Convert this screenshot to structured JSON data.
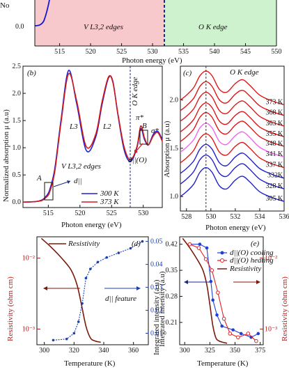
{
  "chart_data": [
    {
      "id": "top",
      "type": "area",
      "xlabel": "Photon energy (eV)",
      "ylabel_fragment": "No",
      "x_ticks": [
        515,
        520,
        525,
        530,
        535,
        540,
        545,
        550
      ],
      "y_ticks": [
        "0.0"
      ],
      "xlim": [
        511,
        550
      ],
      "regions": [
        {
          "label": "V L3,2 edges",
          "from": 511,
          "to": 528,
          "color": "#f7c9cc"
        },
        {
          "label": "O K edge",
          "from": 528,
          "to": 550,
          "color": "#cdf2cd"
        }
      ],
      "divider_x": 528
    },
    {
      "id": "b",
      "type": "line",
      "panel_label": "(b)",
      "xlabel": "Photon energy (eV)",
      "ylabel": "Normalized absorption μ (a.u)",
      "xlim": [
        511,
        533
      ],
      "ylim": [
        -0.1,
        2.5
      ],
      "x_ticks": [
        515,
        520,
        525,
        530
      ],
      "y_ticks": [
        0.0,
        0.5,
        1.0,
        1.5,
        2.0,
        2.5
      ],
      "legend": [
        "300 K",
        "373 K"
      ],
      "annotations": [
        "L3",
        "L2",
        "O K edge",
        "V L3,2 edges",
        "A",
        "B",
        "π*",
        "σ*",
        "d||",
        "d||(O)"
      ],
      "series": [
        {
          "name": "300 K",
          "color": "#1f1fd6",
          "x": [
            511,
            513,
            514,
            514.6,
            515.2,
            516,
            517,
            518.2,
            519.5,
            521,
            522.5,
            523.5,
            524.5,
            525.2,
            526,
            527,
            528,
            529,
            529.6,
            530.2,
            530.8,
            531.6,
            532.3,
            533
          ],
          "y": [
            0.0,
            0.01,
            0.04,
            0.1,
            0.22,
            0.6,
            1.5,
            2.42,
            1.8,
            0.95,
            1.2,
            1.8,
            2.28,
            2.22,
            1.6,
            0.95,
            0.75,
            1.0,
            1.35,
            1.15,
            1.05,
            1.25,
            1.3,
            1.15
          ]
        },
        {
          "name": "373 K",
          "color": "#d11a1a",
          "x": [
            511,
            513,
            514,
            514.6,
            515.2,
            516,
            517,
            518.2,
            519.5,
            521,
            522.5,
            523.5,
            524.5,
            525.2,
            526,
            527,
            528,
            529,
            529.6,
            530.2,
            530.8,
            531.6,
            532.3,
            533
          ],
          "y": [
            0.0,
            0.01,
            0.03,
            0.08,
            0.18,
            0.55,
            1.45,
            2.36,
            1.85,
            1.02,
            1.25,
            1.85,
            2.3,
            2.2,
            1.62,
            1.0,
            0.78,
            1.02,
            1.4,
            1.18,
            1.05,
            1.22,
            1.28,
            1.12
          ]
        }
      ]
    },
    {
      "id": "c",
      "type": "line",
      "panel_label": "(c)",
      "title": "O K edge",
      "xlabel": "Photon energy (eV)",
      "ylabel": "Absorption μ (a.u)",
      "xlim": [
        527.5,
        536
      ],
      "ylim": [
        0.85,
        2.35
      ],
      "x_ticks": [
        528,
        530,
        532,
        534,
        536
      ],
      "y_ticks": [
        1.0,
        1.5,
        2.0
      ],
      "temperatures": [
        "373 K",
        "368 K",
        "363 K",
        "355 K",
        "348 K",
        "341 K",
        "337 K",
        "332K",
        "328 K",
        "305 K"
      ],
      "offsets": [
        2.05,
        1.94,
        1.83,
        1.72,
        1.62,
        1.51,
        1.4,
        1.29,
        1.18,
        1.05
      ],
      "colors": [
        "#e01616",
        "#e01616",
        "#e01616",
        "#e01616",
        "#e01616",
        "#ee66ee",
        "#e01616",
        "#2020d0",
        "#2020d0",
        "#2020d0"
      ],
      "profile_x": [
        527.5,
        528,
        528.6,
        529.1,
        529.6,
        530.1,
        530.7,
        531.3,
        532,
        532.6,
        533.2,
        534,
        535,
        536
      ],
      "profile_y": [
        -0.05,
        0.0,
        0.08,
        0.2,
        0.25,
        0.2,
        0.06,
        0.03,
        0.12,
        0.16,
        0.1,
        0.0,
        -0.06,
        -0.1
      ],
      "dashed_x": 529.6
    },
    {
      "id": "d",
      "type": "line",
      "panel_label": "(d)",
      "xlabel": "Temperature (K)",
      "ylabel_left": "Resistivity (ohm cm)",
      "ylabel_right": "Integrated intensity (a.u)",
      "xlim": [
        295,
        370
      ],
      "log_ylim": [
        0.0006,
        0.02
      ],
      "right_ylim": [
        0.005,
        0.052
      ],
      "x_ticks": [
        300,
        320,
        340,
        360
      ],
      "log_ticks": [
        {
          "v": 0.01,
          "label": "10⁻²"
        },
        {
          "v": 0.001,
          "label": "10⁻³"
        }
      ],
      "right_ticks": [
        0.01,
        0.02,
        0.03,
        0.04,
        0.05
      ],
      "legend": "Resistivity",
      "feature_label": "d|| feature",
      "resistivity": {
        "color": "#7a1a0a",
        "x": [
          298,
          305,
          312,
          318,
          322,
          325,
          328,
          331,
          334,
          338
        ],
        "y": [
          0.019,
          0.014,
          0.0098,
          0.0068,
          0.0042,
          0.0022,
          0.0011,
          0.00075,
          0.00068,
          0.00065
        ]
      },
      "intensity": {
        "color": "#1a3fb0",
        "x": [
          306,
          315,
          320,
          323,
          325.5,
          328,
          331,
          336,
          342,
          350,
          358,
          366
        ],
        "y": [
          0.007,
          0.0075,
          0.01,
          0.015,
          0.023,
          0.034,
          0.038,
          0.041,
          0.043,
          0.045,
          0.047,
          0.05
        ]
      }
    },
    {
      "id": "e",
      "type": "line",
      "panel_label": "(e)",
      "xlabel": "Temperature (K)",
      "ylabel_left": "Integrated intensity (a.u)",
      "ylabel_right": "Resistivity (ohm cm)",
      "xlim": [
        295,
        378
      ],
      "ylim": [
        0.15,
        0.44
      ],
      "log_ylim": [
        0.0006,
        0.02
      ],
      "x_ticks": [
        300,
        325,
        350,
        375
      ],
      "y_ticks": [
        0.21,
        0.28,
        0.35,
        0.42
      ],
      "log_ticks": [
        {
          "v": 0.01,
          "label": "10⁻²"
        },
        {
          "v": 0.001,
          "label": "10⁻³"
        }
      ],
      "legend": [
        "d||(O) cooling",
        "d||(O) heating",
        "Resistivity"
      ],
      "series": [
        {
          "name": "d||(O) cooling",
          "color": "#1f3fd8",
          "x": [
            305,
            315,
            322,
            326,
            328,
            332,
            337,
            348,
            356,
            366,
            373
          ],
          "y": [
            0.42,
            0.42,
            0.41,
            0.32,
            0.27,
            0.23,
            0.2,
            0.19,
            0.18,
            0.17,
            0.18
          ]
        },
        {
          "name": "d||(O) heating",
          "color": "#e02020",
          "x": [
            305,
            314,
            321,
            327,
            333,
            339,
            345,
            353,
            363,
            371
          ],
          "y": [
            0.42,
            0.41,
            0.38,
            0.35,
            0.29,
            0.22,
            0.18,
            0.17,
            0.18,
            0.16
          ]
        }
      ],
      "resistivity": {
        "color": "#7a1a0a",
        "x": [
          298,
          305,
          312,
          318,
          322,
          325,
          328,
          331,
          334,
          338,
          342
        ],
        "y": [
          0.019,
          0.014,
          0.0098,
          0.0068,
          0.0042,
          0.0022,
          0.0011,
          0.00075,
          0.00068,
          0.00065,
          0.00063
        ]
      }
    }
  ]
}
